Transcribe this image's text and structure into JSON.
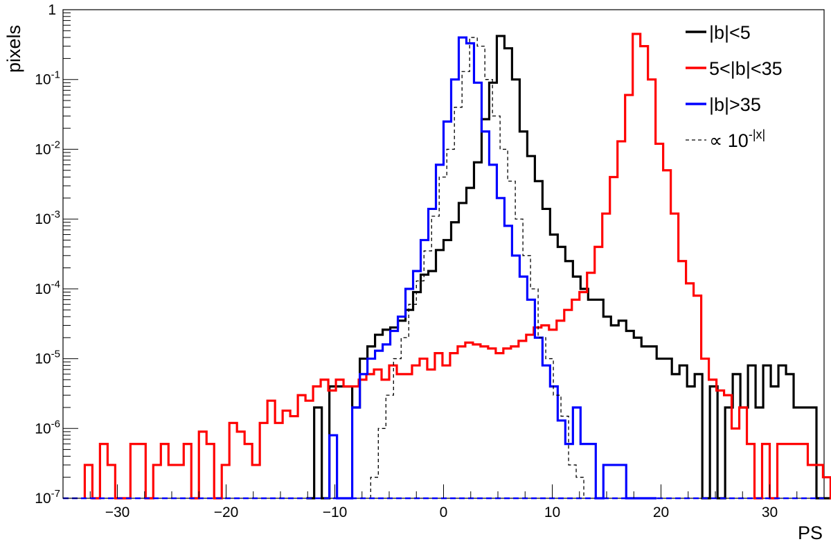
{
  "chart_data": {
    "type": "line",
    "xlabel": "PS",
    "ylabel": "pixels",
    "xlim": [
      -35,
      35
    ],
    "ylim": [
      1e-07,
      1
    ],
    "y_scale": "log",
    "grid": false,
    "legend_position": "top-right",
    "x_ticks": [
      -30,
      -20,
      -10,
      0,
      10,
      20,
      30
    ],
    "x_tick_labels": [
      "−30",
      "−20",
      "−10",
      "0",
      "10",
      "20",
      "30"
    ],
    "y_ticks": [
      {
        "value": 1e-07,
        "base": "10",
        "exp": "-7"
      },
      {
        "value": 1e-06,
        "base": "10",
        "exp": "-6"
      },
      {
        "value": 1e-05,
        "base": "10",
        "exp": "-5"
      },
      {
        "value": 0.0001,
        "base": "10",
        "exp": "-4"
      },
      {
        "value": 0.001,
        "base": "10",
        "exp": "-3"
      },
      {
        "value": 0.01,
        "base": "10",
        "exp": "-2"
      },
      {
        "value": 0.1,
        "base": "10",
        "exp": "-1"
      },
      {
        "value": 1,
        "base": "1",
        "exp": ""
      }
    ],
    "series": [
      {
        "name": "|b|<5",
        "color": "#000000",
        "style": "solid",
        "bin_width": 0.7,
        "x_start": -12.6,
        "values": [
          0,
          2e-06,
          0,
          4e-06,
          4e-06,
          4e-06,
          2e-06,
          1e-05,
          1.5e-05,
          2.2e-05,
          2.6e-05,
          2.8e-05,
          3.5e-05,
          5e-05,
          9e-05,
          0.00016,
          0.00018,
          0.00036,
          0.0005,
          0.0009,
          0.0017,
          0.0028,
          0.0065,
          0.027,
          0.09,
          0.42,
          0.28,
          0.1,
          0.018,
          0.008,
          0.0035,
          0.0014,
          0.0006,
          0.0004,
          0.00025,
          0.00015,
          0.0001,
          7e-05,
          7e-05,
          4e-05,
          3e-05,
          3.5e-05,
          2.5e-05,
          2e-05,
          1.5e-05,
          1.5e-05,
          1e-05,
          1e-05,
          6e-06,
          8e-06,
          4e-06,
          6e-06,
          0,
          4e-06,
          0,
          2e-06,
          6e-06,
          2e-06,
          8e-06,
          2e-06,
          8e-06,
          4e-06,
          8e-06,
          6e-06,
          2e-06,
          2e-06,
          2e-06,
          0,
          0,
          0,
          2e-06,
          0,
          0,
          0,
          0,
          2e-06,
          2e-06
        ]
      },
      {
        "name": "5<|b|<35",
        "color": "#ff0000",
        "style": "solid",
        "bin_width": 0.7,
        "x_start": -33.0,
        "values": [
          3e-07,
          0,
          6e-07,
          3e-07,
          0,
          0,
          6e-07,
          6e-07,
          0,
          3e-07,
          6e-07,
          3e-07,
          3e-07,
          6e-07,
          0,
          9e-07,
          6e-07,
          0,
          3e-07,
          1.2e-06,
          9e-07,
          6e-07,
          3e-07,
          1.2e-06,
          2.5e-06,
          1.2e-06,
          1.8e-06,
          1.5e-06,
          3e-06,
          2.5e-06,
          4e-06,
          5e-06,
          3.5e-06,
          5e-06,
          4e-06,
          4e-06,
          5e-06,
          6e-06,
          7e-06,
          5e-06,
          8e-06,
          6e-06,
          6e-06,
          8e-06,
          1e-05,
          7e-06,
          1.2e-05,
          8e-06,
          1.2e-05,
          1.5e-05,
          1.7e-05,
          1.6e-05,
          1.5e-05,
          1.4e-05,
          1.2e-05,
          1.4e-05,
          1.5e-05,
          1.8e-05,
          2.2e-05,
          2.8e-05,
          3e-05,
          2.6e-05,
          3.5e-05,
          5e-05,
          7e-05,
          9e-05,
          0.00017,
          0.0004,
          0.0012,
          0.004,
          0.013,
          0.06,
          0.45,
          0.3,
          0.1,
          0.012,
          0.005,
          0.0012,
          0.00025,
          0.00012,
          8e-05,
          1e-05,
          5e-06,
          3.5e-06,
          3e-06,
          1e-06,
          2e-06,
          6e-07,
          0,
          6e-07,
          0,
          6e-07,
          6e-07,
          6e-07,
          6e-07,
          3e-07,
          3e-07,
          2e-07,
          0,
          0,
          2e-07
        ]
      },
      {
        "name": "|b|>35",
        "color": "#0000ff",
        "style": "solid",
        "bin_width": 0.7,
        "x_start": -10.5,
        "values": [
          8e-07,
          0,
          0,
          2e-06,
          6e-06,
          1e-05,
          1.3e-05,
          1.6e-05,
          2.5e-05,
          4e-05,
          0.0001,
          0.00018,
          0.0005,
          0.0014,
          0.006,
          0.025,
          0.1,
          0.4,
          0.33,
          0.09,
          0.018,
          0.006,
          0.002,
          0.0008,
          0.0003,
          0.00015,
          7e-05,
          2e-05,
          8e-06,
          4e-06,
          1.3e-06,
          6e-07,
          2e-06,
          6e-07,
          6e-07,
          0,
          3e-07,
          3e-07,
          3e-07,
          0,
          0,
          0,
          0
        ]
      },
      {
        "name": "∝ 10",
        "name_exponent": "-|x|",
        "color": "#000000",
        "style": "dashed",
        "bin_width": 0.7,
        "x_start": -6.7,
        "values": [
          2e-07,
          1e-06,
          3e-06,
          1e-05,
          2e-05,
          6e-05,
          0.00013,
          0.00035,
          0.0011,
          0.004,
          0.01,
          0.04,
          0.13,
          0.4,
          0.3,
          0.1,
          0.03,
          0.01,
          0.0035,
          0.001,
          0.0003,
          0.0001,
          2e-05,
          1e-05,
          3e-06,
          1.5e-06,
          3e-07,
          2e-07
        ]
      }
    ]
  }
}
